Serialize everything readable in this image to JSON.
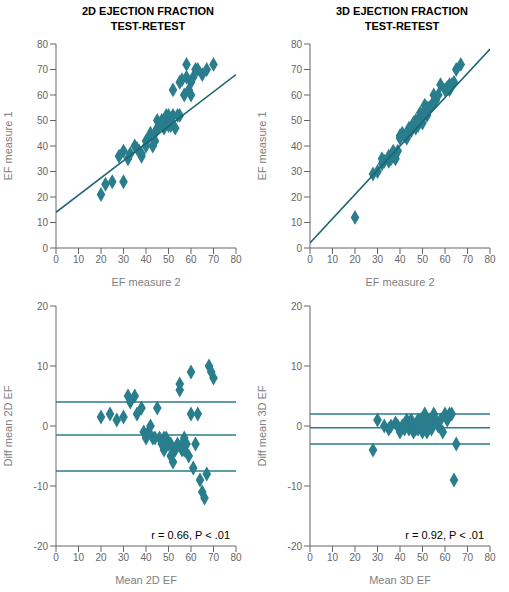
{
  "chart_data": [
    {
      "type": "scatter",
      "title": "2D EJECTION FRACTION\nTEST-RETEST",
      "x_label": "EF measure 2",
      "y_label": "EF measure 1",
      "xlim": [
        0,
        80
      ],
      "ylim": [
        0,
        80
      ],
      "xticks": [
        0,
        10,
        20,
        30,
        40,
        50,
        60,
        70,
        80
      ],
      "yticks": [
        0,
        10,
        20,
        30,
        40,
        50,
        60,
        70,
        80
      ],
      "series": [
        {
          "type": "scatter",
          "color": "#2a7d8c",
          "marker": "diamond",
          "x": [
            20,
            22,
            25,
            28,
            30,
            30,
            32,
            33,
            35,
            36,
            37,
            38,
            38,
            40,
            40,
            41,
            42,
            43,
            44,
            44,
            45,
            45,
            46,
            47,
            48,
            48,
            49,
            50,
            50,
            51,
            51,
            52,
            52,
            53,
            54,
            55,
            55,
            56,
            57,
            58,
            58,
            59,
            60,
            60,
            61,
            62,
            63,
            65,
            67,
            70
          ],
          "values": [
            21,
            25,
            26,
            36,
            38,
            26,
            35,
            37,
            40,
            39,
            38,
            37,
            36,
            42,
            40,
            43,
            45,
            40,
            42,
            45,
            50,
            47,
            48,
            50,
            47,
            50,
            52,
            52,
            48,
            50,
            48,
            62,
            52,
            47,
            52,
            52,
            65,
            66,
            60,
            67,
            72,
            62,
            65,
            60,
            67,
            70,
            70,
            68,
            70,
            72
          ]
        },
        {
          "type": "line",
          "color": "#1a6575",
          "x": [
            0,
            80
          ],
          "values": [
            14,
            68
          ]
        }
      ]
    },
    {
      "type": "scatter",
      "title": "3D EJECTION FRACTION\nTEST-RETEST",
      "x_label": "EF measure 2",
      "y_label": "EF measure 1",
      "xlim": [
        0,
        80
      ],
      "ylim": [
        0,
        80
      ],
      "xticks": [
        0,
        10,
        20,
        30,
        40,
        50,
        60,
        70,
        80
      ],
      "yticks": [
        0,
        10,
        20,
        30,
        40,
        50,
        60,
        70,
        80
      ],
      "series": [
        {
          "type": "scatter",
          "color": "#2a7d8c",
          "marker": "diamond",
          "x": [
            20,
            28,
            30,
            32,
            32,
            33,
            35,
            35,
            36,
            37,
            37,
            38,
            39,
            40,
            40,
            41,
            42,
            43,
            44,
            44,
            45,
            45,
            46,
            46,
            47,
            47,
            48,
            48,
            49,
            49,
            50,
            50,
            51,
            51,
            52,
            52,
            53,
            54,
            55,
            55,
            56,
            57,
            58,
            60,
            61,
            62,
            62,
            63,
            64,
            65,
            67
          ],
          "values": [
            12,
            29,
            30,
            33,
            35,
            34,
            36,
            34,
            35,
            38,
            36,
            35,
            38,
            43,
            44,
            45,
            44,
            43,
            47,
            46,
            47,
            46,
            48,
            49,
            47,
            50,
            48,
            50,
            50,
            53,
            52,
            49,
            53,
            56,
            52,
            55,
            55,
            56,
            57,
            60,
            58,
            60,
            64,
            62,
            63,
            64,
            62,
            64,
            65,
            70,
            72
          ]
        },
        {
          "type": "line",
          "color": "#1a6575",
          "x": [
            0,
            80
          ],
          "values": [
            2,
            78
          ]
        }
      ]
    },
    {
      "type": "scatter",
      "x_label": "Mean 2D EF",
      "y_label": "Diff mean 2D EF",
      "xlim": [
        0,
        80
      ],
      "ylim": [
        -20,
        20
      ],
      "xticks": [
        0,
        10,
        20,
        30,
        40,
        50,
        60,
        70,
        80
      ],
      "yticks": [
        -20,
        -10,
        0,
        10,
        20
      ],
      "annotations": [
        "r = 0.66, P < .01"
      ],
      "series": [
        {
          "type": "scatter",
          "color": "#2a7d8c",
          "marker": "diamond",
          "x": [
            20,
            24,
            27,
            30,
            32,
            33,
            35,
            36,
            38,
            39,
            40,
            41,
            42,
            43,
            44,
            45,
            46,
            47,
            48,
            48,
            49,
            50,
            50,
            51,
            51,
            52,
            53,
            54,
            55,
            55,
            56,
            56,
            57,
            57,
            58,
            59,
            60,
            60,
            61,
            62,
            63,
            64,
            65,
            66,
            67,
            68,
            69,
            70
          ],
          "values": [
            1.5,
            2.0,
            1.0,
            1.5,
            5.0,
            4.0,
            5.0,
            2.0,
            3.0,
            -1.0,
            -2.0,
            -1.0,
            0.0,
            -2.0,
            -2.0,
            3.0,
            -2.0,
            -3.0,
            -2.0,
            -4.0,
            -2.0,
            -3.0,
            -3.0,
            -5.0,
            -3.0,
            -6.0,
            -4.0,
            -3.0,
            6.0,
            7.0,
            -4.0,
            -3.0,
            -2.0,
            -4.0,
            -3.0,
            -5.0,
            9.0,
            2.0,
            -7.0,
            -3.0,
            2.0,
            -9.0,
            -11.0,
            -12.0,
            -8.0,
            10.0,
            9.0,
            8.0
          ]
        },
        {
          "type": "hline",
          "color": "#2a7d8c",
          "values": [
            -1.5,
            4.0,
            -7.5
          ]
        }
      ]
    },
    {
      "type": "scatter",
      "x_label": "Mean 3D EF",
      "y_label": "Diff mean 3D EF",
      "xlim": [
        0,
        80
      ],
      "ylim": [
        -20,
        20
      ],
      "xticks": [
        0,
        10,
        20,
        30,
        40,
        50,
        60,
        70,
        80
      ],
      "yticks": [
        -20,
        -10,
        0,
        10,
        20
      ],
      "annotations": [
        "r = 0.92, P < .01"
      ],
      "series": [
        {
          "type": "scatter",
          "color": "#2a7d8c",
          "marker": "diamond",
          "x": [
            28,
            30,
            33,
            35,
            36,
            38,
            39,
            40,
            41,
            42,
            43,
            44,
            44,
            45,
            45,
            46,
            47,
            47,
            48,
            48,
            49,
            49,
            50,
            50,
            51,
            51,
            52,
            52,
            53,
            54,
            54,
            55,
            56,
            57,
            58,
            59,
            60,
            61,
            62,
            63,
            64,
            65
          ],
          "values": [
            -4.0,
            1.0,
            0.0,
            -0.5,
            0.0,
            0.5,
            0.0,
            -1.0,
            0.0,
            -0.5,
            1.0,
            -0.5,
            0.0,
            0.0,
            1.0,
            -1.0,
            0.0,
            -0.5,
            1.0,
            -0.5,
            0.0,
            1.0,
            0.0,
            -1.0,
            2.0,
            1.0,
            0.0,
            -1.0,
            1.0,
            0.0,
            -0.5,
            2.0,
            1.0,
            0.0,
            1.0,
            -1.0,
            2.0,
            1.0,
            2.0,
            2.0,
            -9.0,
            -3.0
          ]
        },
        {
          "type": "hline",
          "color": "#2a7d8c",
          "values": [
            -0.3,
            2.0,
            -3.0
          ]
        }
      ]
    }
  ]
}
